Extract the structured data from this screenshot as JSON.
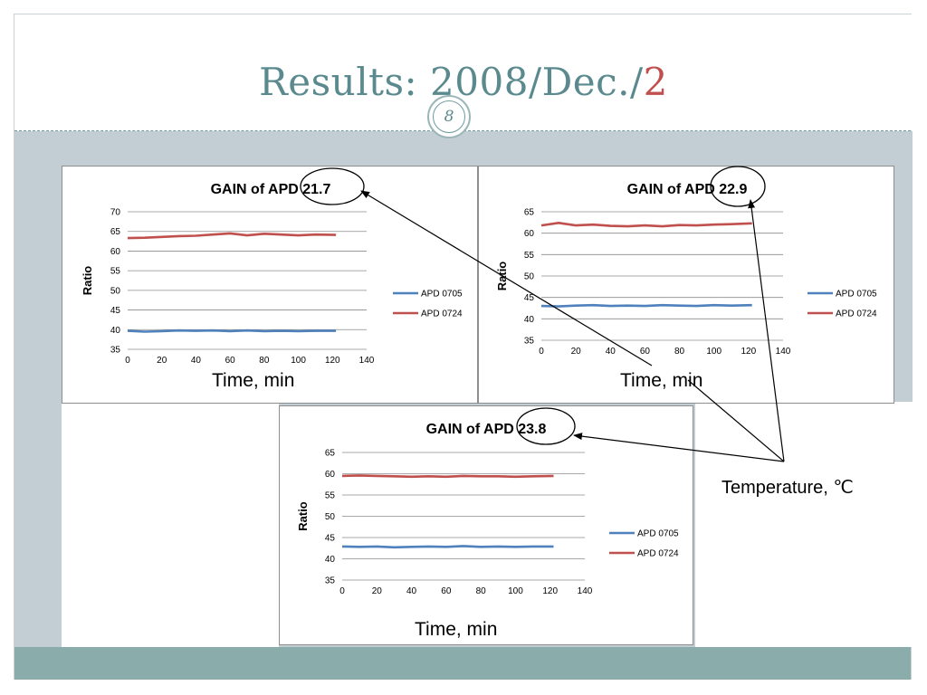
{
  "slide": {
    "title_main": "Results: 2008/Dec./",
    "title_accent": "2",
    "page_number": "8",
    "temperature_label": "Temperature, ℃",
    "colors": {
      "title": "#5a8a8e",
      "accent": "#c0504d",
      "content_bg": "#c3ced4",
      "band": "#8aacaa"
    }
  },
  "charts": {
    "chart1": {
      "time_label": "Time, min"
    },
    "chart2": {
      "time_label": "Time, min"
    },
    "chart3": {
      "time_label": "Time, min"
    }
  },
  "chart_data": [
    {
      "type": "line",
      "title": "GAIN of APD 21.7",
      "title_prefix": "GAIN of APD ",
      "highlight": "21.7",
      "xlabel": "",
      "ylabel": "Ratio",
      "xlim": [
        0,
        140
      ],
      "ylim": [
        35,
        70
      ],
      "xticks": [
        0,
        20,
        40,
        60,
        80,
        100,
        120,
        140
      ],
      "yticks": [
        35,
        40,
        45,
        50,
        55,
        60,
        65,
        70
      ],
      "grid": true,
      "legend": "right",
      "x": [
        0,
        10,
        20,
        30,
        40,
        50,
        60,
        70,
        80,
        90,
        100,
        110,
        122
      ],
      "series": [
        {
          "name": "APD 0705",
          "color": "#4f81bd",
          "values": [
            39.7,
            39.5,
            39.6,
            39.8,
            39.7,
            39.8,
            39.6,
            39.8,
            39.6,
            39.7,
            39.6,
            39.7,
            39.7
          ]
        },
        {
          "name": "APD 0724",
          "color": "#c0504d",
          "values": [
            63.3,
            63.4,
            63.6,
            63.8,
            63.9,
            64.2,
            64.5,
            64.0,
            64.4,
            64.2,
            64.0,
            64.2,
            64.1
          ]
        }
      ]
    },
    {
      "type": "line",
      "title": "GAIN of APD 22.9",
      "title_prefix": "GAIN of APD ",
      "highlight": "22.9",
      "xlabel": "",
      "ylabel": "Ratio",
      "xlim": [
        0,
        140
      ],
      "ylim": [
        35,
        65
      ],
      "xticks": [
        0,
        20,
        40,
        60,
        80,
        100,
        120,
        140
      ],
      "yticks": [
        35,
        40,
        45,
        50,
        55,
        60,
        65
      ],
      "grid": true,
      "legend": "right",
      "x": [
        0,
        10,
        20,
        30,
        40,
        50,
        60,
        70,
        80,
        90,
        100,
        110,
        122
      ],
      "series": [
        {
          "name": "APD 0705",
          "color": "#4f81bd",
          "values": [
            43.0,
            42.9,
            43.1,
            43.2,
            43.0,
            43.1,
            43.0,
            43.2,
            43.1,
            43.0,
            43.2,
            43.1,
            43.2
          ]
        },
        {
          "name": "APD 0724",
          "color": "#c0504d",
          "values": [
            61.8,
            62.4,
            61.8,
            62.0,
            61.7,
            61.6,
            61.8,
            61.6,
            61.9,
            61.8,
            62.0,
            62.1,
            62.3
          ]
        }
      ]
    },
    {
      "type": "line",
      "title": "GAIN of APD 23.8",
      "title_prefix": "GAIN of APD ",
      "highlight": "23.8",
      "xlabel": "",
      "ylabel": "Ratio",
      "xlim": [
        0,
        140
      ],
      "ylim": [
        35,
        65
      ],
      "xticks": [
        0,
        20,
        40,
        60,
        80,
        100,
        120,
        140
      ],
      "yticks": [
        35,
        40,
        45,
        50,
        55,
        60,
        65
      ],
      "grid": true,
      "legend": "right",
      "x": [
        0,
        10,
        20,
        30,
        40,
        50,
        60,
        70,
        80,
        90,
        100,
        110,
        122
      ],
      "series": [
        {
          "name": "APD 0705",
          "color": "#4f81bd",
          "values": [
            42.9,
            42.8,
            42.9,
            42.7,
            42.8,
            42.9,
            42.8,
            43.0,
            42.8,
            42.9,
            42.8,
            42.9,
            42.9
          ]
        },
        {
          "name": "APD 0724",
          "color": "#c0504d",
          "values": [
            59.5,
            59.6,
            59.5,
            59.4,
            59.3,
            59.4,
            59.3,
            59.5,
            59.4,
            59.4,
            59.3,
            59.4,
            59.5
          ]
        }
      ]
    }
  ]
}
